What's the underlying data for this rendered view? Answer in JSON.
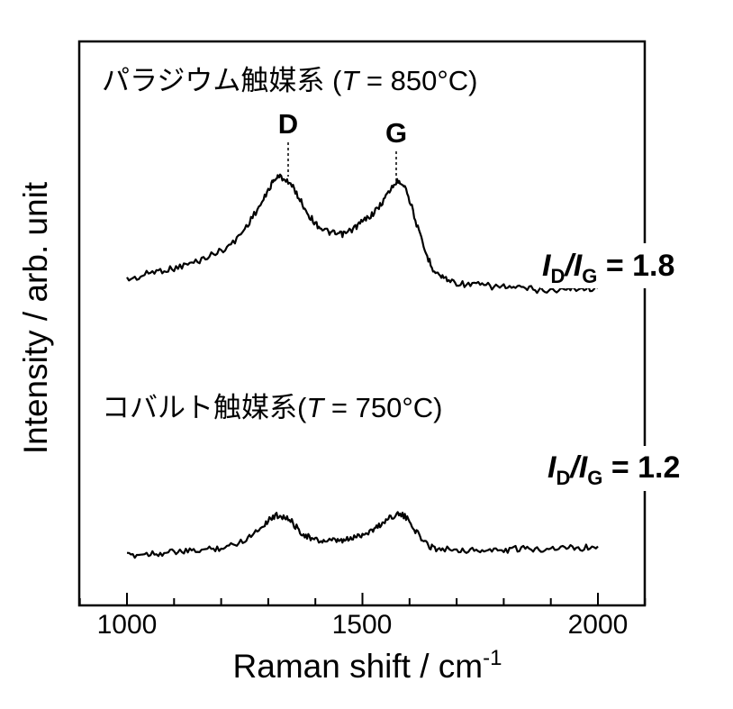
{
  "chart_data": {
    "type": "line",
    "xlabel": {
      "text": "Raman shift / cm",
      "superscript": "-1"
    },
    "ylabel": "Intensity / arb. unit",
    "xlim": [
      900,
      2100
    ],
    "xticks": [
      1000,
      1500,
      2000
    ],
    "tick_labels": [
      "1000",
      "1500",
      "2000"
    ],
    "grid": false,
    "line_color": "#000000",
    "peak_labels": [
      {
        "text": "D",
        "x": 1345
      },
      {
        "text": "G",
        "x": 1575
      }
    ],
    "series": [
      {
        "name": "パラジウム触媒系 (T = 850°C)",
        "label_prefix": "パラジウム触媒系 (",
        "label_var": "T",
        "label_suffix": " = 850°C)",
        "ratio": {
          "numerator": "I",
          "num_sub": "D",
          "slash": "/",
          "denominator": "I",
          "den_sub": "G",
          "eq": " = ",
          "value": "1.8"
        },
        "points": [
          [
            1000,
            0.3
          ],
          [
            1025,
            0.31
          ],
          [
            1050,
            0.34
          ],
          [
            1075,
            0.35
          ],
          [
            1100,
            0.36
          ],
          [
            1125,
            0.38
          ],
          [
            1150,
            0.4
          ],
          [
            1175,
            0.43
          ],
          [
            1200,
            0.46
          ],
          [
            1225,
            0.5
          ],
          [
            1250,
            0.58
          ],
          [
            1270,
            0.66
          ],
          [
            1290,
            0.74
          ],
          [
            1305,
            0.82
          ],
          [
            1315,
            0.86
          ],
          [
            1325,
            0.87
          ],
          [
            1340,
            0.85
          ],
          [
            1355,
            0.8
          ],
          [
            1370,
            0.73
          ],
          [
            1385,
            0.66
          ],
          [
            1400,
            0.61
          ],
          [
            1415,
            0.58
          ],
          [
            1430,
            0.56
          ],
          [
            1445,
            0.55
          ],
          [
            1460,
            0.55
          ],
          [
            1475,
            0.57
          ],
          [
            1490,
            0.6
          ],
          [
            1505,
            0.63
          ],
          [
            1520,
            0.66
          ],
          [
            1535,
            0.7
          ],
          [
            1550,
            0.76
          ],
          [
            1565,
            0.82
          ],
          [
            1578,
            0.85
          ],
          [
            1590,
            0.82
          ],
          [
            1605,
            0.7
          ],
          [
            1620,
            0.56
          ],
          [
            1635,
            0.44
          ],
          [
            1650,
            0.36
          ],
          [
            1665,
            0.32
          ],
          [
            1680,
            0.3
          ],
          [
            1700,
            0.28
          ],
          [
            1725,
            0.27
          ],
          [
            1750,
            0.27
          ],
          [
            1775,
            0.26
          ],
          [
            1800,
            0.26
          ],
          [
            1825,
            0.25
          ],
          [
            1850,
            0.25
          ],
          [
            1875,
            0.24
          ],
          [
            1900,
            0.24
          ],
          [
            1925,
            0.24
          ],
          [
            1950,
            0.25
          ],
          [
            1975,
            0.25
          ],
          [
            2000,
            0.25
          ]
        ]
      },
      {
        "name": "コバルト触媒系(T = 750°C)",
        "label_prefix": "コバルト触媒系(",
        "label_var": "T",
        "label_suffix": " = 750°C)",
        "ratio": {
          "numerator": "I",
          "num_sub": "D",
          "slash": "/",
          "denominator": "I",
          "den_sub": "G",
          "eq": " = ",
          "value": "1.2"
        },
        "points": [
          [
            1000,
            0.02
          ],
          [
            1025,
            0.03
          ],
          [
            1050,
            0.04
          ],
          [
            1075,
            0.04
          ],
          [
            1100,
            0.05
          ],
          [
            1125,
            0.05
          ],
          [
            1150,
            0.06
          ],
          [
            1175,
            0.07
          ],
          [
            1200,
            0.08
          ],
          [
            1225,
            0.1
          ],
          [
            1250,
            0.14
          ],
          [
            1270,
            0.19
          ],
          [
            1290,
            0.25
          ],
          [
            1305,
            0.3
          ],
          [
            1320,
            0.32
          ],
          [
            1335,
            0.31
          ],
          [
            1350,
            0.27
          ],
          [
            1365,
            0.21
          ],
          [
            1380,
            0.17
          ],
          [
            1395,
            0.14
          ],
          [
            1410,
            0.13
          ],
          [
            1425,
            0.13
          ],
          [
            1440,
            0.13
          ],
          [
            1455,
            0.13
          ],
          [
            1470,
            0.14
          ],
          [
            1485,
            0.16
          ],
          [
            1500,
            0.18
          ],
          [
            1515,
            0.2
          ],
          [
            1530,
            0.23
          ],
          [
            1545,
            0.27
          ],
          [
            1560,
            0.31
          ],
          [
            1575,
            0.33
          ],
          [
            1590,
            0.31
          ],
          [
            1605,
            0.25
          ],
          [
            1620,
            0.17
          ],
          [
            1635,
            0.11
          ],
          [
            1650,
            0.08
          ],
          [
            1670,
            0.07
          ],
          [
            1700,
            0.07
          ],
          [
            1725,
            0.06
          ],
          [
            1750,
            0.06
          ],
          [
            1775,
            0.06
          ],
          [
            1800,
            0.06
          ],
          [
            1825,
            0.07
          ],
          [
            1850,
            0.07
          ],
          [
            1875,
            0.07
          ],
          [
            1900,
            0.08
          ],
          [
            1925,
            0.08
          ],
          [
            1950,
            0.08
          ],
          [
            1975,
            0.08
          ],
          [
            2000,
            0.09
          ]
        ]
      }
    ]
  }
}
